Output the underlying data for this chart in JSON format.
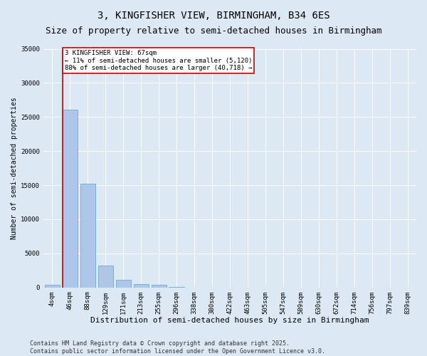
{
  "title": "3, KINGFISHER VIEW, BIRMINGHAM, B34 6ES",
  "subtitle": "Size of property relative to semi-detached houses in Birmingham",
  "xlabel": "Distribution of semi-detached houses by size in Birmingham",
  "ylabel": "Number of semi-detached properties",
  "categories": [
    "4sqm",
    "46sqm",
    "88sqm",
    "129sqm",
    "171sqm",
    "213sqm",
    "255sqm",
    "296sqm",
    "338sqm",
    "380sqm",
    "422sqm",
    "463sqm",
    "505sqm",
    "547sqm",
    "589sqm",
    "630sqm",
    "672sqm",
    "714sqm",
    "756sqm",
    "797sqm",
    "839sqm"
  ],
  "values": [
    350,
    26100,
    15200,
    3200,
    1100,
    450,
    350,
    100,
    0,
    0,
    0,
    0,
    0,
    0,
    0,
    0,
    0,
    0,
    0,
    0,
    0
  ],
  "bar_color": "#aec6e8",
  "bar_edge_color": "#5a9fd4",
  "property_line_bar_index": 1,
  "annotation_title": "3 KINGFISHER VIEW: 67sqm",
  "annotation_line1": "← 11% of semi-detached houses are smaller (5,120)",
  "annotation_line2": "88% of semi-detached houses are larger (40,718) →",
  "annotation_box_color": "#ffffff",
  "annotation_box_edge_color": "#cc0000",
  "property_line_color": "#cc0000",
  "background_color": "#dce9f5",
  "ylim": [
    0,
    35000
  ],
  "yticks": [
    0,
    5000,
    10000,
    15000,
    20000,
    25000,
    30000,
    35000
  ],
  "footer_text": "Contains HM Land Registry data © Crown copyright and database right 2025.\nContains public sector information licensed under the Open Government Licence v3.0.",
  "title_fontsize": 10,
  "subtitle_fontsize": 9,
  "xlabel_fontsize": 8,
  "ylabel_fontsize": 7,
  "tick_fontsize": 6.5,
  "footer_fontsize": 6,
  "ann_fontsize": 6.5
}
